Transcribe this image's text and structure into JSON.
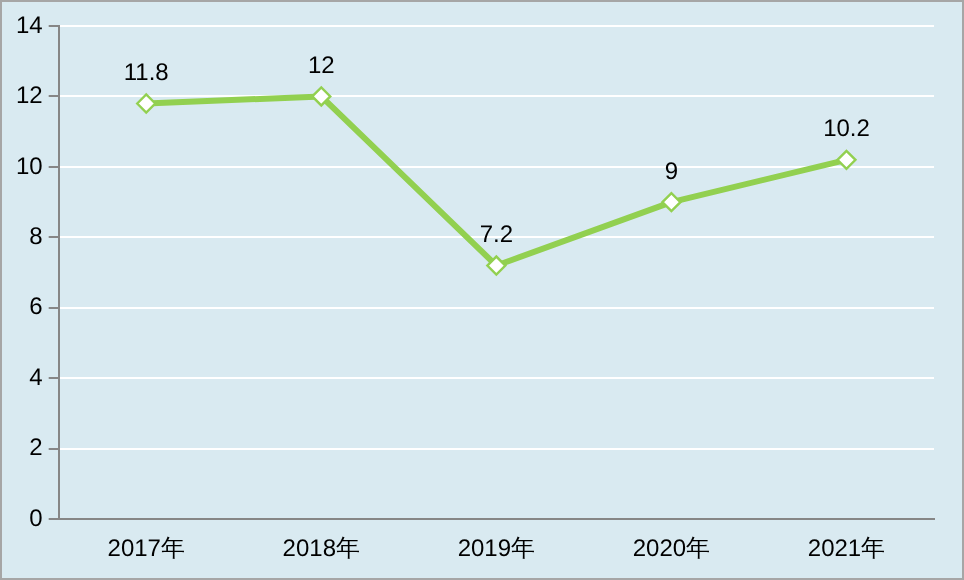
{
  "chart_data": {
    "type": "line",
    "categories": [
      "2017年",
      "2018年",
      "2019年",
      "2020年",
      "2021年"
    ],
    "series": [
      {
        "color": "#92d050",
        "values": [
          11.8,
          12,
          7.2,
          9,
          10.2
        ]
      }
    ],
    "ylim": [
      0,
      14
    ],
    "yticks": [
      0,
      2,
      4,
      6,
      8,
      10,
      12,
      14
    ],
    "grid": "y",
    "legend": false,
    "marker": "diamond",
    "line_style": "solid",
    "data_labels": true
  }
}
